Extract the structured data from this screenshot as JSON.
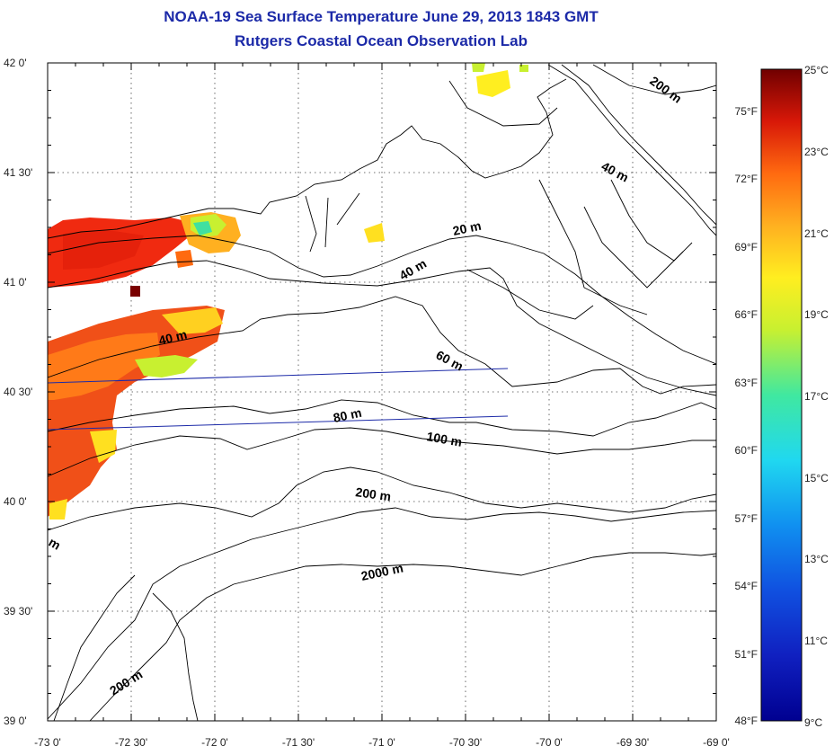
{
  "title": "NOAA-19 Sea Surface Temperature June 29, 2013 1843 GMT",
  "subtitle": "Rutgers Coastal Ocean Observation Lab",
  "axes": {
    "x_ticks": [
      "-73 0'",
      "-72 30'",
      "-72 0'",
      "-71 30'",
      "-71 0'",
      "-70 30'",
      "-70 0'",
      "-69 30'",
      "-69 0'"
    ],
    "y_ticks": [
      "42 0'",
      "41 30'",
      "41 0'",
      "40 30'",
      "40 0'",
      "39 30'",
      "39 0'"
    ]
  },
  "contour_labels": [
    "20 m",
    "40 m",
    "40 m",
    "40 m",
    "60 m",
    "80 m",
    "100 m",
    "200 m",
    "200 m",
    "200 m",
    "2000 m",
    "m"
  ],
  "colorbar": {
    "celsius_labels": [
      "25°C",
      "23°C",
      "21°C",
      "19°C",
      "17°C",
      "15°C",
      "13°C",
      "11°C",
      "9°C"
    ],
    "fahrenheit_labels": [
      "75°F",
      "72°F",
      "69°F",
      "66°F",
      "63°F",
      "60°F",
      "57°F",
      "54°F",
      "51°F",
      "48°F"
    ],
    "colors": [
      "#7a0000",
      "#c00000",
      "#ee3010",
      "#ff7a10",
      "#ffb020",
      "#ffee20",
      "#c8f030",
      "#60e880",
      "#20e8d0",
      "#20c8f0",
      "#1090f0",
      "#1050e0",
      "#1020c0",
      "#000090"
    ]
  }
}
